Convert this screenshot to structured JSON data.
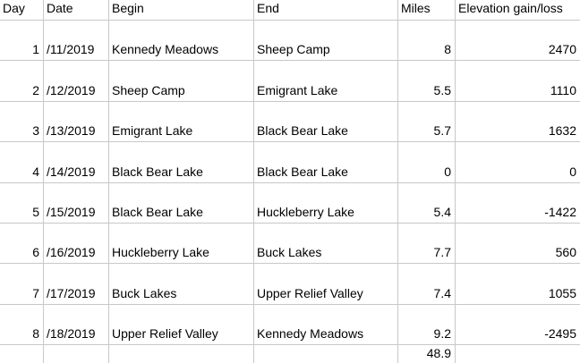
{
  "headers": [
    "Day",
    "Date",
    "Begin",
    "End",
    "Miles",
    "Elevation gain/loss"
  ],
  "rows": [
    {
      "day": "1",
      "date": "/11/2019",
      "begin": "Kennedy Meadows",
      "end": "Sheep Camp",
      "miles": "8",
      "elevation": "2470"
    },
    {
      "day": "2",
      "date": "/12/2019",
      "begin": "Sheep Camp",
      "end": "Emigrant Lake",
      "miles": "5.5",
      "elevation": "1110"
    },
    {
      "day": "3",
      "date": "/13/2019",
      "begin": "Emigrant Lake",
      "end": "Black Bear Lake",
      "miles": "5.7",
      "elevation": "1632"
    },
    {
      "day": "4",
      "date": "/14/2019",
      "begin": "Black Bear Lake",
      "end": "Black Bear Lake",
      "miles": "0",
      "elevation": "0"
    },
    {
      "day": "5",
      "date": "/15/2019",
      "begin": "Black Bear Lake",
      "end": "Huckleberry Lake",
      "miles": "5.4",
      "elevation": "-1422"
    },
    {
      "day": "6",
      "date": "/16/2019",
      "begin": "Huckleberry Lake",
      "end": "Buck Lakes",
      "miles": "7.7",
      "elevation": "560"
    },
    {
      "day": "7",
      "date": "/17/2019",
      "begin": "Buck Lakes",
      "end": "Upper Relief Valley",
      "miles": "7.4",
      "elevation": "1055"
    },
    {
      "day": "8",
      "date": "/18/2019",
      "begin": "Upper Relief Valley",
      "end": "Kennedy Meadows",
      "miles": "9.2",
      "elevation": "-2495"
    }
  ],
  "total_miles": "48.9"
}
